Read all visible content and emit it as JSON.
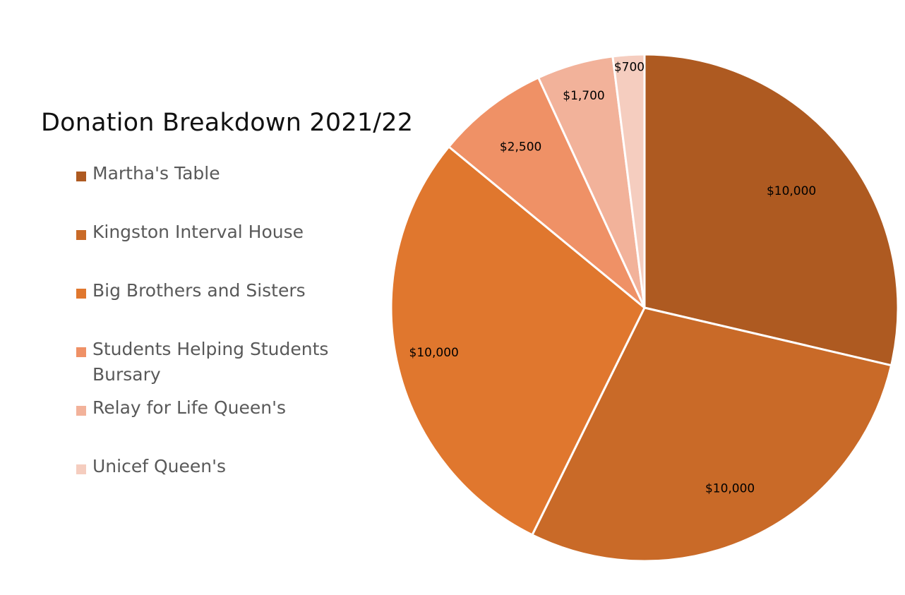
{
  "chart_data": {
    "type": "pie",
    "title": "Donation Breakdown 2021/22",
    "legend_position": "left",
    "categories": [
      "Martha's Table",
      "Kingston Interval House",
      "Big Brothers and Sisters",
      "Students Helping Students Bursary",
      "Relay for Life Queen's",
      "Unicef Queen's"
    ],
    "values": [
      10000,
      10000,
      10000,
      2500,
      1700,
      700
    ],
    "data_labels": [
      "$10,000",
      "$10,000",
      "$10,000",
      "$2,500",
      "$1,700",
      "$700"
    ],
    "colors": [
      "#AE5A21",
      "#C96A28",
      "#E0772E",
      "#EF9166",
      "#F2B29A",
      "#F5CDBF"
    ],
    "slice_separator_color": "#FFFFFF"
  }
}
